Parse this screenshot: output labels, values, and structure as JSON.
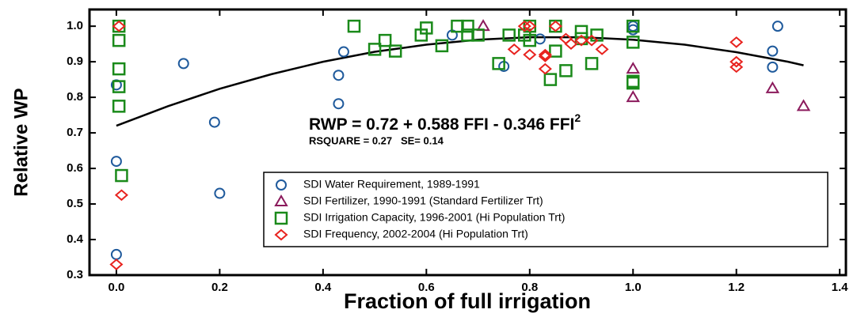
{
  "chart_data": {
    "type": "scatter",
    "x_label": "Fraction of full irrigation",
    "y_label": "Relative WP",
    "xlim": [
      -0.052,
      1.412
    ],
    "ylim": [
      0.3,
      1.047
    ],
    "xticks": [
      {
        "value": 0,
        "label": "0.0"
      },
      0.2,
      0.4,
      0.6,
      0.8,
      {
        "value": 1,
        "label": "1.0"
      },
      1.2,
      1.4
    ],
    "yticks": [
      0.3,
      0.4,
      0.5,
      0.6,
      0.7,
      0.8,
      0.9,
      {
        "value": 1,
        "label": "1.0"
      }
    ],
    "legend": "lower right",
    "equation": {
      "text": "RWP = 0.72 + 0.588 FFI - 0.346 FFI",
      "superscript": "2"
    },
    "stats": "RSQUARE = 0.27   SE= 0.14",
    "fit": {
      "color": "#000000",
      "x": [
        0,
        0.1,
        0.2,
        0.3,
        0.4,
        0.5,
        0.6,
        0.7,
        0.8,
        0.9,
        1.0,
        1.1,
        1.2,
        1.3,
        1.33
      ],
      "values": [
        0.72,
        0.775,
        0.824,
        0.865,
        0.9,
        0.928,
        0.948,
        0.962,
        0.969,
        0.969,
        0.962,
        0.948,
        0.927,
        0.9,
        0.89
      ]
    },
    "series": [
      {
        "name": "SDI Water Requirement, 1989-1991",
        "color": "#1f5a9c",
        "marker": "circle",
        "x": [
          0,
          0,
          0,
          0.13,
          0.19,
          0.2,
          0.43,
          0.44,
          0.43,
          0.65,
          0.75,
          0.82,
          1.0,
          1.0,
          1.27,
          1.27,
          1.28
        ],
        "values": [
          0.835,
          0.62,
          0.358,
          0.895,
          0.73,
          0.53,
          0.862,
          0.928,
          0.782,
          0.975,
          0.887,
          0.964,
          1.0,
          0.99,
          0.93,
          0.885,
          1.0
        ]
      },
      {
        "name": "SDI Fertilizer, 1990-1991  (Standard Fertilizer Trt)",
        "color": "#8b1a5c",
        "marker": "triangle",
        "x": [
          0.71,
          1.0,
          1.0,
          1.27,
          1.33
        ],
        "values": [
          1.0,
          0.88,
          0.8,
          0.825,
          0.775
        ]
      },
      {
        "name": "SDI Irrigation Capacity,  1996-2001 (Hi Population Trt)",
        "color": "#1a8a1a",
        "marker": "square",
        "x": [
          0.005,
          0.005,
          0.005,
          0.005,
          0.005,
          0.01,
          0.46,
          0.5,
          0.52,
          0.54,
          0.59,
          0.6,
          0.63,
          0.66,
          0.68,
          0.68,
          0.7,
          0.74,
          0.76,
          0.79,
          0.8,
          0.8,
          0.84,
          0.85,
          0.85,
          0.87,
          0.9,
          0.9,
          0.92,
          0.93,
          1.0,
          1.0,
          1.0,
          1.0
        ],
        "values": [
          1.0,
          0.96,
          0.88,
          0.83,
          0.775,
          0.58,
          1.0,
          0.935,
          0.96,
          0.93,
          0.975,
          0.995,
          0.945,
          1.0,
          1.0,
          0.975,
          0.975,
          0.895,
          0.975,
          0.975,
          0.96,
          1.0,
          0.85,
          0.93,
          1.0,
          0.875,
          0.985,
          0.965,
          0.895,
          0.975,
          1.0,
          0.955,
          0.845,
          0.84
        ]
      },
      {
        "name": "SDI Frequency, 2002-2004 (Hi Population Trt)",
        "color": "#e8231f",
        "marker": "diamond",
        "x": [
          0.005,
          0.01,
          0.0,
          0.77,
          0.79,
          0.8,
          0.8,
          0.83,
          0.83,
          0.83,
          0.85,
          0.87,
          0.88,
          0.9,
          0.92,
          0.94,
          1.2,
          1.2,
          1.2
        ],
        "values": [
          1.0,
          0.525,
          0.33,
          0.935,
          1.0,
          1.0,
          0.92,
          0.92,
          0.88,
          0.915,
          1.0,
          0.965,
          0.95,
          0.96,
          0.96,
          0.935,
          0.955,
          0.9,
          0.885
        ]
      }
    ]
  }
}
